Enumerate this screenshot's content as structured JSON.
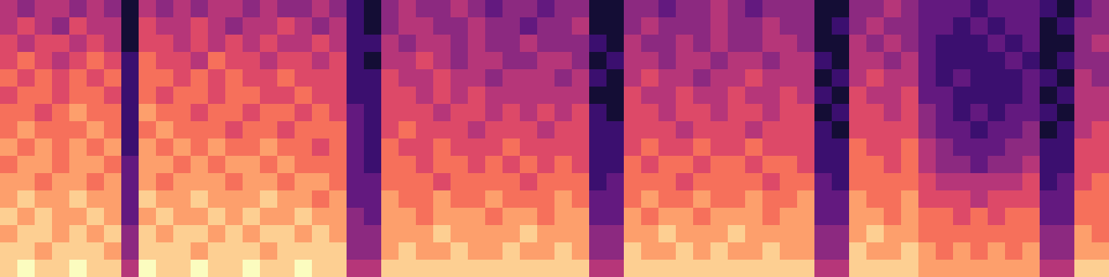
{
  "chart_data": {
    "type": "heatmap",
    "color": "magma",
    "tick_labels": false,
    "color_range": [
      0,
      10
    ],
    "cells": [
      [
        5,
        4,
        5,
        5,
        4,
        5,
        4,
        1,
        5,
        4,
        5,
        4,
        5,
        5,
        4,
        5,
        4,
        4,
        5,
        4,
        2,
        1,
        4,
        5,
        4,
        4,
        5,
        4,
        3,
        4,
        4,
        3,
        4,
        4,
        1,
        1,
        4,
        4,
        3,
        4,
        4,
        5,
        4,
        3,
        4,
        4,
        4,
        1,
        1,
        4,
        4,
        5,
        4,
        3,
        3,
        3,
        2,
        3,
        3,
        3,
        2,
        1,
        3,
        4
      ],
      [
        5,
        6,
        5,
        4,
        6,
        5,
        5,
        1,
        6,
        5,
        5,
        6,
        5,
        4,
        5,
        5,
        6,
        5,
        4,
        5,
        2,
        1,
        4,
        5,
        5,
        4,
        4,
        5,
        4,
        4,
        3,
        4,
        4,
        5,
        1,
        1,
        4,
        5,
        4,
        4,
        4,
        5,
        4,
        4,
        5,
        4,
        4,
        1,
        2,
        4,
        5,
        4,
        4,
        3,
        3,
        2,
        3,
        2,
        3,
        3,
        1,
        2,
        4,
        4
      ],
      [
        6,
        5,
        6,
        6,
        5,
        6,
        5,
        1,
        6,
        6,
        5,
        6,
        5,
        6,
        5,
        6,
        5,
        5,
        6,
        5,
        2,
        2,
        5,
        4,
        5,
        5,
        4,
        5,
        4,
        4,
        5,
        4,
        4,
        4,
        2,
        1,
        5,
        4,
        4,
        5,
        4,
        5,
        4,
        4,
        5,
        5,
        4,
        1,
        1,
        5,
        4,
        5,
        4,
        3,
        2,
        2,
        2,
        3,
        2,
        3,
        1,
        1,
        4,
        5
      ],
      [
        6,
        7,
        6,
        5,
        6,
        7,
        6,
        2,
        7,
        6,
        6,
        5,
        7,
        6,
        6,
        5,
        6,
        6,
        5,
        6,
        2,
        1,
        5,
        5,
        6,
        5,
        4,
        5,
        5,
        4,
        4,
        5,
        5,
        4,
        1,
        2,
        5,
        5,
        4,
        5,
        5,
        4,
        5,
        5,
        4,
        5,
        5,
        2,
        1,
        5,
        5,
        4,
        5,
        3,
        2,
        2,
        2,
        2,
        3,
        2,
        1,
        2,
        4,
        4
      ],
      [
        7,
        6,
        7,
        6,
        7,
        6,
        7,
        2,
        7,
        7,
        6,
        7,
        6,
        7,
        6,
        6,
        7,
        6,
        6,
        6,
        2,
        2,
        6,
        5,
        5,
        6,
        5,
        5,
        4,
        5,
        5,
        5,
        4,
        5,
        2,
        1,
        5,
        6,
        5,
        5,
        4,
        5,
        5,
        6,
        5,
        5,
        5,
        1,
        2,
        5,
        6,
        5,
        5,
        3,
        2,
        3,
        2,
        2,
        2,
        3,
        2,
        1,
        5,
        4
      ],
      [
        6,
        7,
        7,
        6,
        7,
        7,
        6,
        2,
        7,
        6,
        7,
        7,
        6,
        7,
        7,
        6,
        6,
        7,
        6,
        6,
        2,
        2,
        6,
        6,
        5,
        6,
        5,
        6,
        5,
        5,
        5,
        5,
        5,
        5,
        1,
        1,
        6,
        5,
        5,
        6,
        5,
        5,
        6,
        5,
        5,
        6,
        5,
        2,
        1,
        6,
        5,
        5,
        6,
        3,
        3,
        2,
        2,
        2,
        2,
        3,
        1,
        2,
        5,
        5
      ],
      [
        7,
        7,
        6,
        7,
        8,
        7,
        7,
        2,
        8,
        7,
        7,
        6,
        7,
        7,
        6,
        7,
        7,
        6,
        7,
        6,
        3,
        2,
        6,
        6,
        6,
        5,
        6,
        6,
        5,
        6,
        5,
        6,
        5,
        6,
        2,
        1,
        6,
        6,
        5,
        6,
        6,
        5,
        6,
        6,
        5,
        6,
        6,
        1,
        2,
        6,
        6,
        5,
        6,
        4,
        3,
        2,
        3,
        2,
        3,
        3,
        2,
        1,
        5,
        5
      ],
      [
        7,
        8,
        7,
        7,
        7,
        8,
        7,
        2,
        7,
        8,
        7,
        7,
        7,
        6,
        7,
        7,
        6,
        7,
        7,
        7,
        3,
        2,
        6,
        7,
        6,
        6,
        6,
        5,
        6,
        6,
        6,
        5,
        6,
        6,
        2,
        2,
        6,
        6,
        6,
        5,
        6,
        6,
        6,
        5,
        6,
        6,
        6,
        2,
        1,
        6,
        6,
        6,
        6,
        4,
        3,
        3,
        2,
        3,
        3,
        4,
        1,
        2,
        5,
        6
      ],
      [
        8,
        7,
        8,
        7,
        8,
        7,
        8,
        2,
        8,
        7,
        8,
        7,
        8,
        7,
        7,
        8,
        7,
        7,
        6,
        7,
        3,
        2,
        7,
        6,
        6,
        7,
        6,
        6,
        6,
        7,
        6,
        6,
        6,
        6,
        2,
        2,
        6,
        7,
        6,
        6,
        7,
        6,
        6,
        7,
        6,
        6,
        6,
        2,
        2,
        7,
        6,
        6,
        7,
        5,
        4,
        3,
        3,
        3,
        4,
        4,
        2,
        2,
        6,
        6
      ],
      [
        7,
        8,
        8,
        7,
        8,
        8,
        7,
        3,
        8,
        8,
        7,
        8,
        7,
        8,
        8,
        7,
        8,
        7,
        7,
        7,
        3,
        2,
        7,
        7,
        6,
        7,
        7,
        6,
        7,
        6,
        7,
        6,
        7,
        6,
        2,
        2,
        7,
        6,
        7,
        7,
        6,
        7,
        7,
        6,
        7,
        7,
        6,
        2,
        2,
        7,
        7,
        6,
        7,
        5,
        4,
        4,
        3,
        4,
        4,
        5,
        2,
        2,
        6,
        6
      ],
      [
        8,
        8,
        7,
        8,
        8,
        7,
        8,
        3,
        8,
        7,
        8,
        8,
        8,
        7,
        8,
        8,
        7,
        8,
        8,
        7,
        3,
        3,
        7,
        7,
        7,
        6,
        7,
        7,
        7,
        7,
        6,
        7,
        7,
        7,
        2,
        3,
        7,
        7,
        7,
        6,
        7,
        7,
        7,
        7,
        6,
        7,
        7,
        3,
        2,
        7,
        7,
        7,
        7,
        6,
        5,
        5,
        5,
        5,
        5,
        6,
        2,
        3,
        6,
        7
      ],
      [
        8,
        9,
        8,
        8,
        9,
        8,
        8,
        3,
        9,
        8,
        8,
        9,
        8,
        8,
        8,
        9,
        8,
        8,
        7,
        8,
        3,
        3,
        8,
        7,
        7,
        8,
        7,
        7,
        8,
        7,
        7,
        7,
        8,
        7,
        3,
        3,
        7,
        8,
        7,
        7,
        8,
        7,
        7,
        8,
        7,
        7,
        8,
        3,
        3,
        8,
        7,
        7,
        8,
        6,
        6,
        6,
        5,
        6,
        6,
        6,
        3,
        3,
        7,
        7
      ],
      [
        9,
        8,
        9,
        8,
        8,
        9,
        8,
        3,
        8,
        9,
        8,
        8,
        9,
        8,
        9,
        8,
        8,
        9,
        8,
        8,
        4,
        3,
        8,
        8,
        7,
        8,
        8,
        8,
        7,
        8,
        8,
        7,
        8,
        8,
        3,
        3,
        8,
        7,
        8,
        8,
        7,
        8,
        8,
        8,
        7,
        8,
        8,
        3,
        3,
        8,
        8,
        7,
        8,
        7,
        7,
        6,
        7,
        6,
        7,
        7,
        3,
        3,
        7,
        7
      ],
      [
        8,
        9,
        9,
        8,
        9,
        8,
        9,
        4,
        9,
        8,
        9,
        9,
        8,
        9,
        8,
        9,
        9,
        8,
        9,
        8,
        4,
        4,
        8,
        8,
        8,
        9,
        8,
        8,
        8,
        8,
        9,
        8,
        8,
        8,
        4,
        4,
        8,
        8,
        9,
        8,
        8,
        8,
        9,
        8,
        8,
        8,
        8,
        4,
        4,
        8,
        9,
        8,
        8,
        7,
        7,
        7,
        7,
        7,
        7,
        7,
        4,
        4,
        8,
        7
      ],
      [
        9,
        9,
        8,
        9,
        9,
        9,
        8,
        4,
        9,
        9,
        9,
        8,
        9,
        9,
        9,
        8,
        9,
        9,
        9,
        9,
        4,
        4,
        8,
        9,
        8,
        8,
        9,
        8,
        8,
        9,
        8,
        8,
        9,
        8,
        4,
        4,
        9,
        8,
        8,
        9,
        8,
        9,
        8,
        8,
        9,
        8,
        8,
        4,
        4,
        9,
        8,
        8,
        9,
        8,
        7,
        8,
        7,
        8,
        7,
        8,
        4,
        4,
        8,
        8
      ],
      [
        9,
        10,
        9,
        9,
        10,
        9,
        9,
        5,
        10,
        9,
        9,
        10,
        9,
        9,
        10,
        9,
        9,
        10,
        9,
        9,
        5,
        5,
        9,
        9,
        9,
        9,
        9,
        9,
        9,
        9,
        9,
        9,
        9,
        9,
        5,
        5,
        9,
        9,
        9,
        9,
        9,
        9,
        9,
        9,
        9,
        9,
        9,
        5,
        5,
        9,
        9,
        9,
        9,
        8,
        8,
        8,
        8,
        8,
        8,
        8,
        5,
        5,
        9,
        9
      ]
    ]
  }
}
